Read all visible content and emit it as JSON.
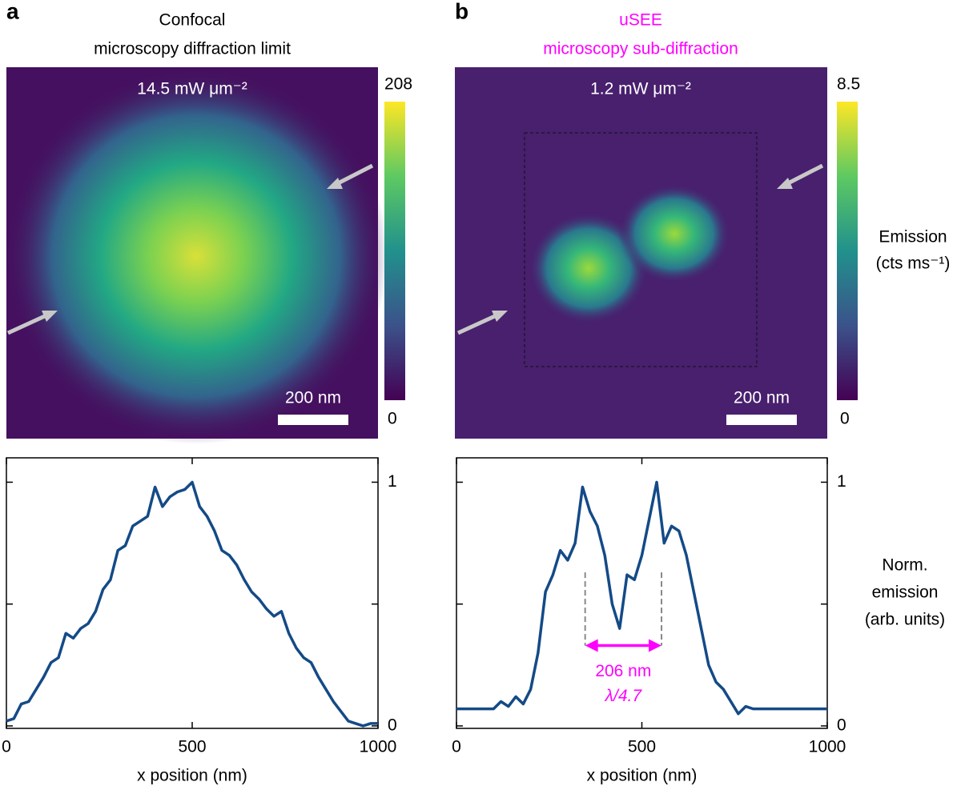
{
  "chart_data": [
    {
      "type": "line",
      "panel": "a",
      "title": [
        "Confocal",
        "microscopy diffraction limit"
      ],
      "title_color": "#000000",
      "image": {
        "intensity": "14.5 mW μm⁻²",
        "scalebar": "200 nm",
        "clim": [
          0,
          208
        ]
      },
      "x": [
        0,
        20,
        40,
        60,
        80,
        100,
        120,
        140,
        160,
        180,
        200,
        220,
        240,
        260,
        280,
        300,
        320,
        340,
        360,
        380,
        400,
        420,
        440,
        460,
        480,
        500,
        520,
        540,
        560,
        580,
        600,
        620,
        640,
        660,
        680,
        700,
        720,
        740,
        760,
        780,
        800,
        820,
        840,
        860,
        880,
        900,
        920,
        940,
        960,
        980,
        1000
      ],
      "values": [
        0.02,
        0.03,
        0.09,
        0.1,
        0.15,
        0.2,
        0.26,
        0.28,
        0.38,
        0.36,
        0.4,
        0.42,
        0.47,
        0.56,
        0.6,
        0.72,
        0.74,
        0.82,
        0.84,
        0.86,
        0.98,
        0.9,
        0.94,
        0.96,
        0.97,
        1.0,
        0.9,
        0.86,
        0.8,
        0.72,
        0.7,
        0.66,
        0.6,
        0.55,
        0.52,
        0.48,
        0.45,
        0.47,
        0.38,
        0.32,
        0.28,
        0.26,
        0.2,
        0.15,
        0.1,
        0.06,
        0.02,
        0.01,
        0.0,
        0.01,
        0.01
      ],
      "color": "#144a87",
      "xlim": [
        0,
        1000
      ],
      "ylim": [
        -0.01,
        1.1
      ],
      "xticks": [
        0,
        500,
        1000
      ],
      "yticks": [
        0,
        1
      ],
      "yminorticks": [
        0.5
      ],
      "xlabel": "x position (nm)"
    },
    {
      "type": "line",
      "panel": "b",
      "title": [
        "uSEE",
        "microscopy sub-diffraction"
      ],
      "title_color": "#ff00ff",
      "image": {
        "intensity": "1.2 mW μm⁻²",
        "scalebar": "200 nm",
        "clim": [
          0,
          8.5
        ]
      },
      "colorbar_label": [
        "Emission",
        "(cts ms⁻¹)"
      ],
      "x": [
        0,
        20,
        40,
        60,
        80,
        100,
        120,
        140,
        160,
        180,
        200,
        220,
        240,
        260,
        280,
        300,
        320,
        340,
        360,
        380,
        400,
        420,
        440,
        460,
        480,
        500,
        520,
        540,
        560,
        580,
        600,
        620,
        640,
        660,
        680,
        700,
        720,
        740,
        760,
        780,
        800,
        820,
        840,
        860,
        880,
        900,
        920,
        940,
        960,
        980,
        1000
      ],
      "values": [
        0.07,
        0.07,
        0.07,
        0.07,
        0.07,
        0.07,
        0.1,
        0.08,
        0.12,
        0.09,
        0.15,
        0.3,
        0.55,
        0.62,
        0.72,
        0.68,
        0.75,
        0.98,
        0.88,
        0.82,
        0.7,
        0.5,
        0.4,
        0.62,
        0.6,
        0.7,
        0.85,
        1.0,
        0.75,
        0.82,
        0.8,
        0.7,
        0.55,
        0.4,
        0.25,
        0.18,
        0.15,
        0.1,
        0.05,
        0.08,
        0.07,
        0.07,
        0.07,
        0.07,
        0.07,
        0.07,
        0.07,
        0.07,
        0.07,
        0.07,
        0.07
      ],
      "color": "#144a87",
      "xlim": [
        0,
        1000
      ],
      "ylim": [
        -0.01,
        1.1
      ],
      "xticks": [
        0,
        500,
        1000
      ],
      "yticks": [
        0,
        1
      ],
      "yminorticks": [
        0.5
      ],
      "xlabel": "x position (nm)",
      "ylabel": [
        "Norm.",
        "emission",
        "(arb. units)"
      ],
      "annotation": {
        "text": "206 nm",
        "subtext": "λ/4.7",
        "x": [
          347,
          553
        ],
        "y": 0.33,
        "top": 0.63,
        "color": "#ff00ff"
      }
    }
  ]
}
